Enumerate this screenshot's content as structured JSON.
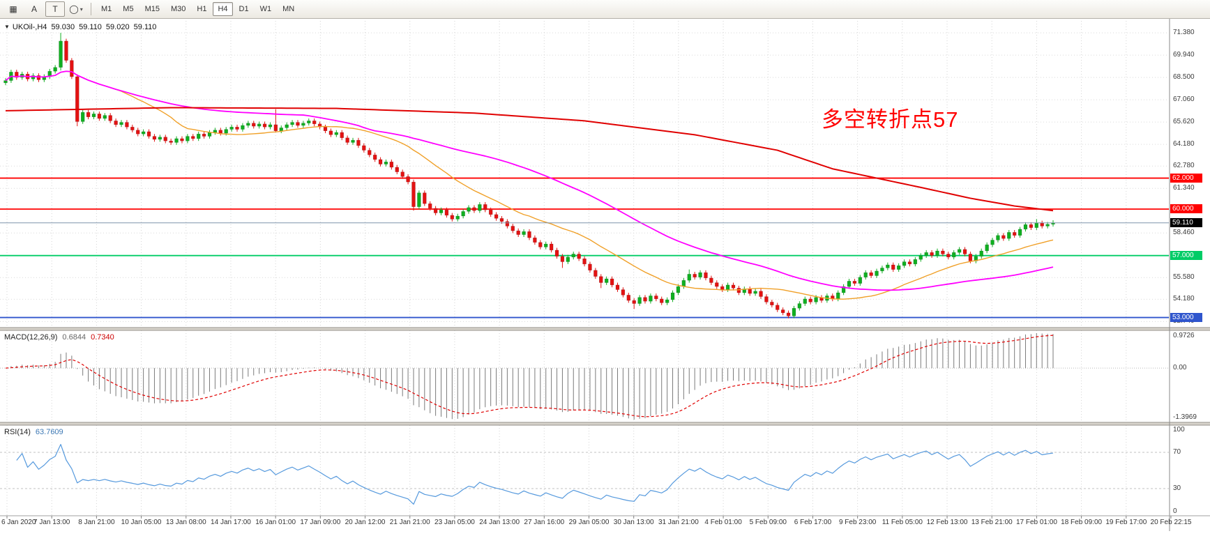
{
  "toolbar": {
    "tools": [
      {
        "name": "chart-windows-icon",
        "glyph": "▦"
      },
      {
        "name": "font-tool",
        "glyph": "A"
      },
      {
        "name": "text-tool",
        "glyph": "T",
        "boxed": true
      },
      {
        "name": "shapes-tool",
        "glyph": "◯",
        "caret": "▾"
      }
    ],
    "timeframes": [
      "M1",
      "M5",
      "M15",
      "M30",
      "H1",
      "H4",
      "D1",
      "W1",
      "MN"
    ],
    "active_timeframe": "H4"
  },
  "header": {
    "dropdown": "▼",
    "symbol_period": "UKOil-,H4",
    "open": "59.030",
    "high": "59.110",
    "low": "59.020",
    "close": "59.110"
  },
  "annotation": {
    "text": "多空转折点57",
    "color": "#ff0000"
  },
  "indicators": {
    "macd": {
      "label": "MACD(12,26,9)",
      "main_value": "0.6844",
      "signal_value": "0.7340",
      "axis_labels": {
        "top": "0.9726",
        "zero": "0.00",
        "bottom": "-1.3969"
      }
    },
    "rsi": {
      "label": "RSI(14)",
      "value": "63.7609",
      "axis_labels": [
        "100",
        "70",
        "30",
        "0"
      ]
    }
  },
  "chart_data": {
    "type": "candlestick",
    "symbol": "UKOil-",
    "timeframe": "H4",
    "price_range": {
      "max": 72.15,
      "min": 52.35
    },
    "price_axis_labels": [
      71.38,
      69.94,
      68.5,
      67.06,
      65.62,
      64.18,
      62.78,
      61.34,
      58.46,
      55.58,
      54.18,
      52.74
    ],
    "first_open": 68.15,
    "default_wick": 0.15,
    "closes": [
      68.3,
      68.85,
      68.5,
      68.72,
      68.4,
      68.62,
      68.35,
      68.55,
      68.9,
      69.15,
      70.85,
      69.6,
      68.55,
      65.65,
      66.25,
      65.95,
      66.15,
      65.85,
      66.05,
      65.7,
      65.45,
      65.6,
      65.3,
      65.1,
      64.85,
      65.0,
      64.7,
      64.5,
      64.65,
      64.4,
      64.3,
      64.55,
      64.4,
      64.7,
      64.55,
      64.85,
      64.7,
      64.95,
      65.1,
      64.9,
      65.15,
      65.3,
      65.15,
      65.4,
      65.55,
      65.35,
      65.5,
      65.3,
      65.45,
      65.05,
      65.25,
      65.45,
      65.6,
      65.4,
      65.55,
      65.7,
      65.5,
      65.3,
      65.05,
      64.8,
      64.95,
      64.6,
      64.3,
      64.45,
      64.1,
      63.8,
      63.5,
      63.2,
      62.9,
      63.05,
      62.7,
      62.4,
      62.1,
      61.75,
      60.15,
      61.05,
      60.35,
      60.05,
      59.75,
      59.95,
      59.6,
      59.35,
      59.55,
      59.85,
      60.1,
      59.9,
      60.3,
      59.95,
      59.65,
      59.4,
      59.2,
      58.9,
      58.6,
      58.35,
      58.55,
      58.15,
      57.85,
      57.55,
      57.75,
      57.35,
      56.95,
      56.6,
      56.9,
      57.1,
      56.8,
      56.45,
      56.05,
      55.65,
      55.25,
      55.5,
      55.1,
      54.8,
      54.45,
      54.1,
      53.9,
      54.3,
      54.05,
      54.4,
      54.2,
      53.95,
      54.15,
      54.6,
      55.0,
      55.4,
      55.8,
      55.6,
      55.9,
      55.55,
      55.25,
      55.0,
      54.8,
      55.1,
      54.9,
      54.6,
      54.85,
      54.55,
      54.7,
      54.35,
      54.0,
      53.8,
      53.5,
      53.3,
      53.1,
      53.6,
      53.9,
      54.2,
      54.0,
      54.3,
      54.1,
      54.4,
      54.2,
      54.6,
      55.0,
      55.35,
      55.2,
      55.6,
      55.9,
      55.7,
      56.0,
      56.2,
      56.4,
      56.1,
      56.35,
      56.6,
      56.45,
      56.75,
      57.0,
      57.2,
      57.0,
      57.3,
      57.1,
      56.9,
      57.2,
      57.4,
      57.1,
      56.65,
      56.95,
      57.3,
      57.7,
      58.0,
      58.3,
      58.1,
      58.5,
      58.3,
      58.7,
      59.0,
      58.8,
      59.1,
      58.9,
      59.02,
      59.11
    ],
    "wick_overrides": {
      "10": [
        71.38,
        68.95
      ],
      "13": [
        null,
        65.35
      ],
      "49": [
        66.45,
        64.95
      ],
      "74": [
        null,
        59.9
      ],
      "75": [
        61.2,
        null
      ],
      "101": [
        null,
        56.2
      ],
      "108": [
        null,
        54.9
      ],
      "114": [
        null,
        53.55
      ],
      "124": [
        56.1,
        null
      ],
      "142": [
        null,
        52.95
      ],
      "187": [
        59.35,
        null
      ],
      "190": [
        59.28,
        null
      ]
    },
    "colors": {
      "up": "#0faf20",
      "down": "#e31212"
    },
    "levels": [
      {
        "value": 62,
        "label": "62.000",
        "color": "#ff0000"
      },
      {
        "value": 60,
        "label": "60.000",
        "color": "#ff0000"
      },
      {
        "value": 57,
        "label": "57.000",
        "color": "#00cc66"
      },
      {
        "value": 53,
        "label": "53.000",
        "color": "#2f55cd"
      }
    ],
    "current_price": {
      "value": 59.11,
      "label": "59.110",
      "line_color": "#7d94ab",
      "badge_color": "#000000"
    },
    "moving_averages": {
      "fast_orange": {
        "type": "sma",
        "period": 21,
        "color": "#f0a028"
      },
      "mid_magenta": {
        "type": "sma",
        "period": 55,
        "color": "#ff00ff"
      },
      "slow_red": {
        "type": "waypoints",
        "color": "#e00000",
        "points": [
          [
            0,
            66.35
          ],
          [
            30,
            66.55
          ],
          [
            60,
            66.5
          ],
          [
            85,
            66.2
          ],
          [
            105,
            65.7
          ],
          [
            125,
            64.8
          ],
          [
            140,
            63.8
          ],
          [
            150,
            62.6
          ],
          [
            158,
            62.0
          ],
          [
            166,
            61.4
          ],
          [
            175,
            60.7
          ],
          [
            183,
            60.2
          ],
          [
            190,
            59.9
          ]
        ]
      }
    },
    "macd": {
      "fast": 12,
      "slow": 26,
      "signal": 9,
      "axis_max": 0.9726,
      "axis_min": -1.3969,
      "hist_color": "#7a7a7a",
      "signal_color": "#e00000"
    },
    "rsi": {
      "period": 14,
      "levels": [
        70,
        30
      ],
      "line_color": "#5599dd"
    },
    "x_labels": [
      "6 Jan 2020",
      "7 Jan 13:00",
      "8 Jan 21:00",
      "10 Jan 05:00",
      "13 Jan 08:00",
      "14 Jan 17:00",
      "16 Jan 01:00",
      "17 Jan 09:00",
      "20 Jan 12:00",
      "21 Jan 21:00",
      "23 Jan 05:00",
      "24 Jan 13:00",
      "27 Jan 16:00",
      "29 Jan 05:00",
      "30 Jan 13:00",
      "31 Jan 21:00",
      "4 Feb 01:00",
      "5 Feb 09:00",
      "6 Feb 17:00",
      "9 Feb 23:00",
      "11 Feb 05:00",
      "12 Feb 13:00",
      "13 Feb 21:00",
      "17 Feb 01:00",
      "18 Feb 09:00",
      "19 Feb 17:00",
      "20 Feb 22:15"
    ]
  }
}
